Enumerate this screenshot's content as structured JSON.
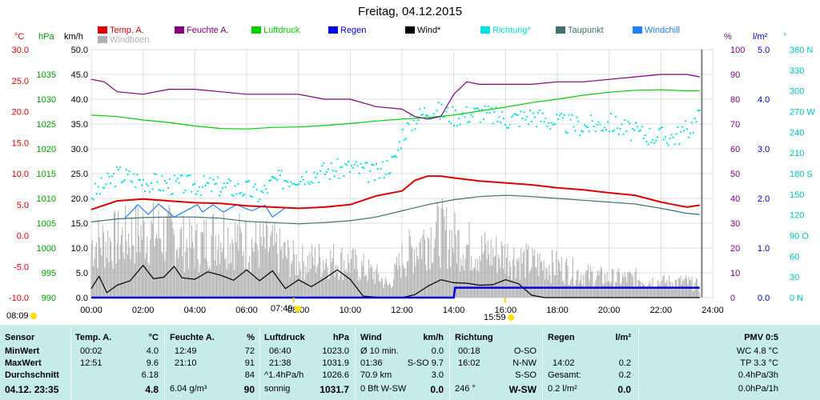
{
  "title": "Freitag, 04.12.2015",
  "legend": [
    {
      "label": "Temp. A.",
      "color": "#e00000"
    },
    {
      "label": "Feuchte A.",
      "color": "#800080"
    },
    {
      "label": "Luftdruck",
      "color": "#00d000"
    },
    {
      "label": "Regen",
      "color": "#0000e0"
    },
    {
      "label": "Wind*",
      "color": "#000000"
    },
    {
      "label": "Richtung*",
      "color": "#00e0e0"
    },
    {
      "label": "Taupunkt",
      "color": "#407070"
    },
    {
      "label": "Windchill",
      "color": "#2080ff"
    },
    {
      "label": "Windböen",
      "color": "#b0b0b0"
    }
  ],
  "units": {
    "temp": "°C",
    "press": "hPa",
    "wind": "km/h",
    "hum": "%",
    "rain": "l/m²",
    "dir": "°"
  },
  "sunrise": "07:49",
  "sunset": "15:59",
  "current_time": "08:09",
  "chart_data": {
    "type": "line",
    "x_range_hours": [
      0,
      24
    ],
    "x_ticks": [
      "00:00",
      "02:00",
      "04:00",
      "06:00",
      "08:00",
      "10:00",
      "12:00",
      "14:00",
      "16:00",
      "18:00",
      "20:00",
      "22:00",
      "24:00"
    ],
    "axes": {
      "temp": {
        "label": "°C",
        "min": -10,
        "max": 30,
        "ticks": [
          "30.0",
          "25.0",
          "20.0",
          "15.0",
          "10.0",
          "5.0",
          "0.0",
          "-5.0",
          "-10.0"
        ],
        "color": "#e00000"
      },
      "press": {
        "label": "hPa",
        "min": 990,
        "max": 1040,
        "ticks": [
          "1035",
          "1030",
          "1025",
          "1020",
          "1015",
          "1010",
          "1005",
          "1000",
          "995",
          "990"
        ],
        "color": "#00a000"
      },
      "wind": {
        "label": "km/h",
        "min": 0,
        "max": 50,
        "ticks": [
          "50.0",
          "45.0",
          "40.0",
          "35.0",
          "30.0",
          "25.0",
          "20.0",
          "15.0",
          "10.0",
          "5.0",
          "0.0"
        ],
        "color": "#000000"
      },
      "hum": {
        "label": "%",
        "min": 0,
        "max": 100,
        "ticks": [
          "100",
          "90",
          "80",
          "70",
          "60",
          "50",
          "40",
          "30",
          "20",
          "10",
          "0"
        ],
        "color": "#800080"
      },
      "rain": {
        "label": "l/m²",
        "min": 0,
        "max": 5,
        "ticks": [
          "5.0",
          "4.0",
          "3.0",
          "2.0",
          "1.0",
          "0.0"
        ],
        "color": "#0000c0"
      },
      "dir": {
        "label": "°",
        "min": 0,
        "max": 360,
        "ticks": [
          "360 N",
          "330",
          "300",
          "270 W",
          "240",
          "210",
          "180 S",
          "150",
          "120",
          "90 O",
          "60",
          "30",
          "0 N"
        ],
        "color": "#00c0c0"
      }
    },
    "series": [
      {
        "name": "Temp. A.",
        "axis": "temp",
        "color": "#e00000",
        "x": [
          0,
          1,
          2,
          3,
          4,
          5,
          6,
          7,
          8,
          9,
          10,
          11,
          12,
          12.5,
          13,
          13.5,
          14,
          15,
          16,
          17,
          18,
          19,
          20,
          21,
          22,
          22.5,
          23,
          23.5
        ],
        "y": [
          4.2,
          5.6,
          5.9,
          5.6,
          5.3,
          5.2,
          4.8,
          4.6,
          4.4,
          4.6,
          5.0,
          6.4,
          7.2,
          8.9,
          9.6,
          9.6,
          9.3,
          8.8,
          8.5,
          8.2,
          7.7,
          7.4,
          6.9,
          6.5,
          5.4,
          5.0,
          4.6,
          4.9
        ]
      },
      {
        "name": "Feuchte A.",
        "axis": "hum",
        "color": "#800080",
        "x": [
          0,
          0.5,
          1,
          2,
          3,
          4,
          5,
          6,
          7,
          8,
          9,
          10,
          11,
          12,
          12.5,
          13,
          13.5,
          14,
          14.5,
          15,
          16,
          17,
          18,
          19,
          20,
          21,
          22,
          23,
          23.5
        ],
        "y": [
          88,
          87,
          83,
          82,
          84,
          84,
          83,
          82,
          82,
          82,
          80,
          80,
          77,
          76,
          73,
          72,
          73,
          82,
          87,
          86,
          86,
          86,
          87,
          87,
          88,
          89,
          90,
          90,
          89
        ]
      },
      {
        "name": "Luftdruck",
        "axis": "press",
        "color": "#00d000",
        "x": [
          0,
          1,
          2,
          3,
          4,
          5,
          6,
          7,
          8,
          9,
          10,
          11,
          12,
          13,
          14,
          15,
          16,
          17,
          18,
          19,
          20,
          21,
          22,
          23,
          23.5
        ],
        "y": [
          1026.8,
          1026.5,
          1025.8,
          1025.3,
          1024.6,
          1024.1,
          1024.0,
          1024.3,
          1024.4,
          1024.7,
          1025.1,
          1025.6,
          1026.0,
          1026.3,
          1026.8,
          1027.6,
          1028.4,
          1029.3,
          1030.0,
          1030.8,
          1031.4,
          1031.8,
          1031.9,
          1031.7,
          1031.7
        ]
      },
      {
        "name": "Taupunkt",
        "axis": "temp",
        "color": "#407070",
        "x": [
          0,
          1,
          2,
          3,
          4,
          5,
          6,
          7,
          8,
          9,
          10,
          11,
          12,
          13,
          14,
          15,
          16,
          17,
          18,
          19,
          20,
          21,
          22,
          23,
          23.5
        ],
        "y": [
          2.2,
          2.7,
          2.9,
          3.0,
          3.0,
          2.8,
          2.3,
          2.1,
          1.9,
          2.1,
          2.4,
          3.0,
          4.0,
          5.0,
          5.8,
          6.3,
          6.5,
          6.3,
          6.0,
          5.7,
          5.4,
          5.1,
          4.4,
          3.6,
          3.4
        ]
      },
      {
        "name": "Windchill",
        "axis": "temp",
        "color": "#2080ff",
        "x": [
          1.3,
          1.8,
          2.2,
          2.6,
          3.2,
          4.1,
          4.3,
          4.7,
          5.1,
          5.6,
          6.2,
          6.7,
          7.0,
          7.5
        ],
        "y": [
          2.8,
          5.0,
          3.4,
          5.1,
          3.0,
          5.0,
          3.8,
          5.0,
          3.8,
          5.0,
          4.0,
          4.9,
          3.0,
          4.5
        ]
      },
      {
        "name": "Wind*",
        "axis": "wind",
        "color": "#000000",
        "x": [
          0,
          0.3,
          0.6,
          1.0,
          1.5,
          2.0,
          2.4,
          2.8,
          3.2,
          3.5,
          4.0,
          4.5,
          5.0,
          5.5,
          6.0,
          6.5,
          7.0,
          7.5,
          8.0,
          8.5,
          9.0,
          9.5,
          10.0,
          10.5,
          11.0,
          11.5,
          12.0,
          12.5,
          13.0,
          13.5,
          14.0,
          14.5,
          15.0,
          15.5,
          16.0,
          16.5,
          17.0,
          17.5,
          18.0,
          19.0,
          20.0,
          21.0,
          22.0,
          23.0,
          23.5
        ],
        "y": [
          1.8,
          4.3,
          1.0,
          2.5,
          3.4,
          6.5,
          3.8,
          4.1,
          6.3,
          4.0,
          3.7,
          5.2,
          4.5,
          3.5,
          5.6,
          3.4,
          5.4,
          1.8,
          3.6,
          2.2,
          3.8,
          5.6,
          3.7,
          0.3,
          0.1,
          0,
          0,
          0.6,
          2.3,
          3.6,
          3.0,
          2.9,
          2.5,
          2.6,
          3.6,
          2.8,
          0.5,
          0,
          0,
          0,
          0,
          0,
          0,
          0,
          0
        ]
      },
      {
        "name": "Windböen",
        "axis": "wind",
        "color": "#b0b0b0",
        "x": [
          0,
          1,
          2,
          3,
          4,
          5,
          6,
          7,
          8,
          9,
          10,
          11,
          11.5,
          12,
          12.5,
          13,
          13.5,
          14,
          15,
          16,
          17,
          18,
          19,
          20,
          21,
          22,
          23,
          23.5
        ],
        "y": [
          14,
          15,
          17,
          16,
          13,
          17,
          14,
          13,
          9,
          10,
          9,
          6,
          3,
          10,
          13,
          16,
          17,
          15,
          12,
          11,
          9,
          8,
          6,
          5,
          5,
          4,
          4,
          3
        ]
      },
      {
        "name": "Richtung*",
        "axis": "dir",
        "color": "#00e0e0",
        "x": [
          0,
          0.5,
          1,
          2,
          3,
          4,
          5,
          6,
          6.5,
          7,
          8,
          9,
          10,
          11,
          11.3,
          11.7,
          12,
          12.5,
          13,
          14,
          15,
          16,
          17,
          18,
          19,
          20,
          21,
          22,
          22.5,
          23,
          23.5
        ],
        "y": [
          150,
          165,
          180,
          170,
          165,
          165,
          162,
          158,
          150,
          170,
          178,
          185,
          190,
          180,
          190,
          200,
          240,
          260,
          275,
          265,
          270,
          260,
          265,
          255,
          250,
          255,
          240,
          235,
          235,
          245,
          265
        ]
      },
      {
        "name": "Regen",
        "axis": "rain",
        "color": "#0000e0",
        "x": [
          0,
          14.0,
          14.05,
          14.8,
          15.0,
          23.5
        ],
        "y": [
          0,
          0,
          0.2,
          0.2,
          0.2,
          0.2
        ]
      }
    ]
  },
  "panel": {
    "sensor": {
      "header": "Sensor",
      "rows": [
        "MinWert",
        "MaxWert",
        "Durchschnitt"
      ],
      "current": "04.12. 23:35"
    },
    "temp": {
      "header": "Temp. A.",
      "unit": "°C",
      "min_time": "00:02",
      "min": "4.0",
      "max_time": "12:51",
      "max": "9.6",
      "avg": "6.18",
      "current": "4.8"
    },
    "hum": {
      "header": "Feuchte A.",
      "unit": "%",
      "min_time": "12:49",
      "min": "72",
      "max_time": "21:10",
      "max": "91",
      "avg": "84",
      "abs": "6.04 g/m³",
      "current": "90"
    },
    "press": {
      "header": "Luftdruck",
      "unit": "hPa",
      "min_time": "06:40",
      "min": "1023.0",
      "max_time": "21:38",
      "max": "1031.9",
      "trend": "^1.4hPa/h",
      "avg": "1026.6",
      "forecast": "sonnig",
      "current": "1031.7"
    },
    "wind": {
      "header": "Wind",
      "unit": "km/h",
      "r1a": "Ø 10 min.",
      "r1b": "0.0",
      "r2a": "01:36",
      "r2b": "S-SO 9.7",
      "r3a": "70.9 km",
      "r3b": "3.0",
      "r4a": "0 Bft W-SW",
      "r4b": "0.0"
    },
    "dir": {
      "header": "Richtung",
      "r1a": "00:18",
      "r1b": "O-SO",
      "r2a": "16:02",
      "r2b": "N-NW",
      "r3b": "S-SO",
      "r4a": "246 °",
      "r4b": "W-SW"
    },
    "rain": {
      "header": "Regen",
      "unit": "l/m²",
      "r2a": "14:02",
      "r2b": "0.2",
      "r3a": "Gesamt:",
      "r3b": "0.2",
      "r4a": "0.2 l/m²",
      "r4b": "0.0"
    },
    "pmv": {
      "header": "PMV 0:5",
      "r1": "WC 4.8 °C",
      "r2": "TP 3.3 °C",
      "r3": "0.4hPa/3h",
      "r4": "0.0hPa/1h"
    }
  }
}
